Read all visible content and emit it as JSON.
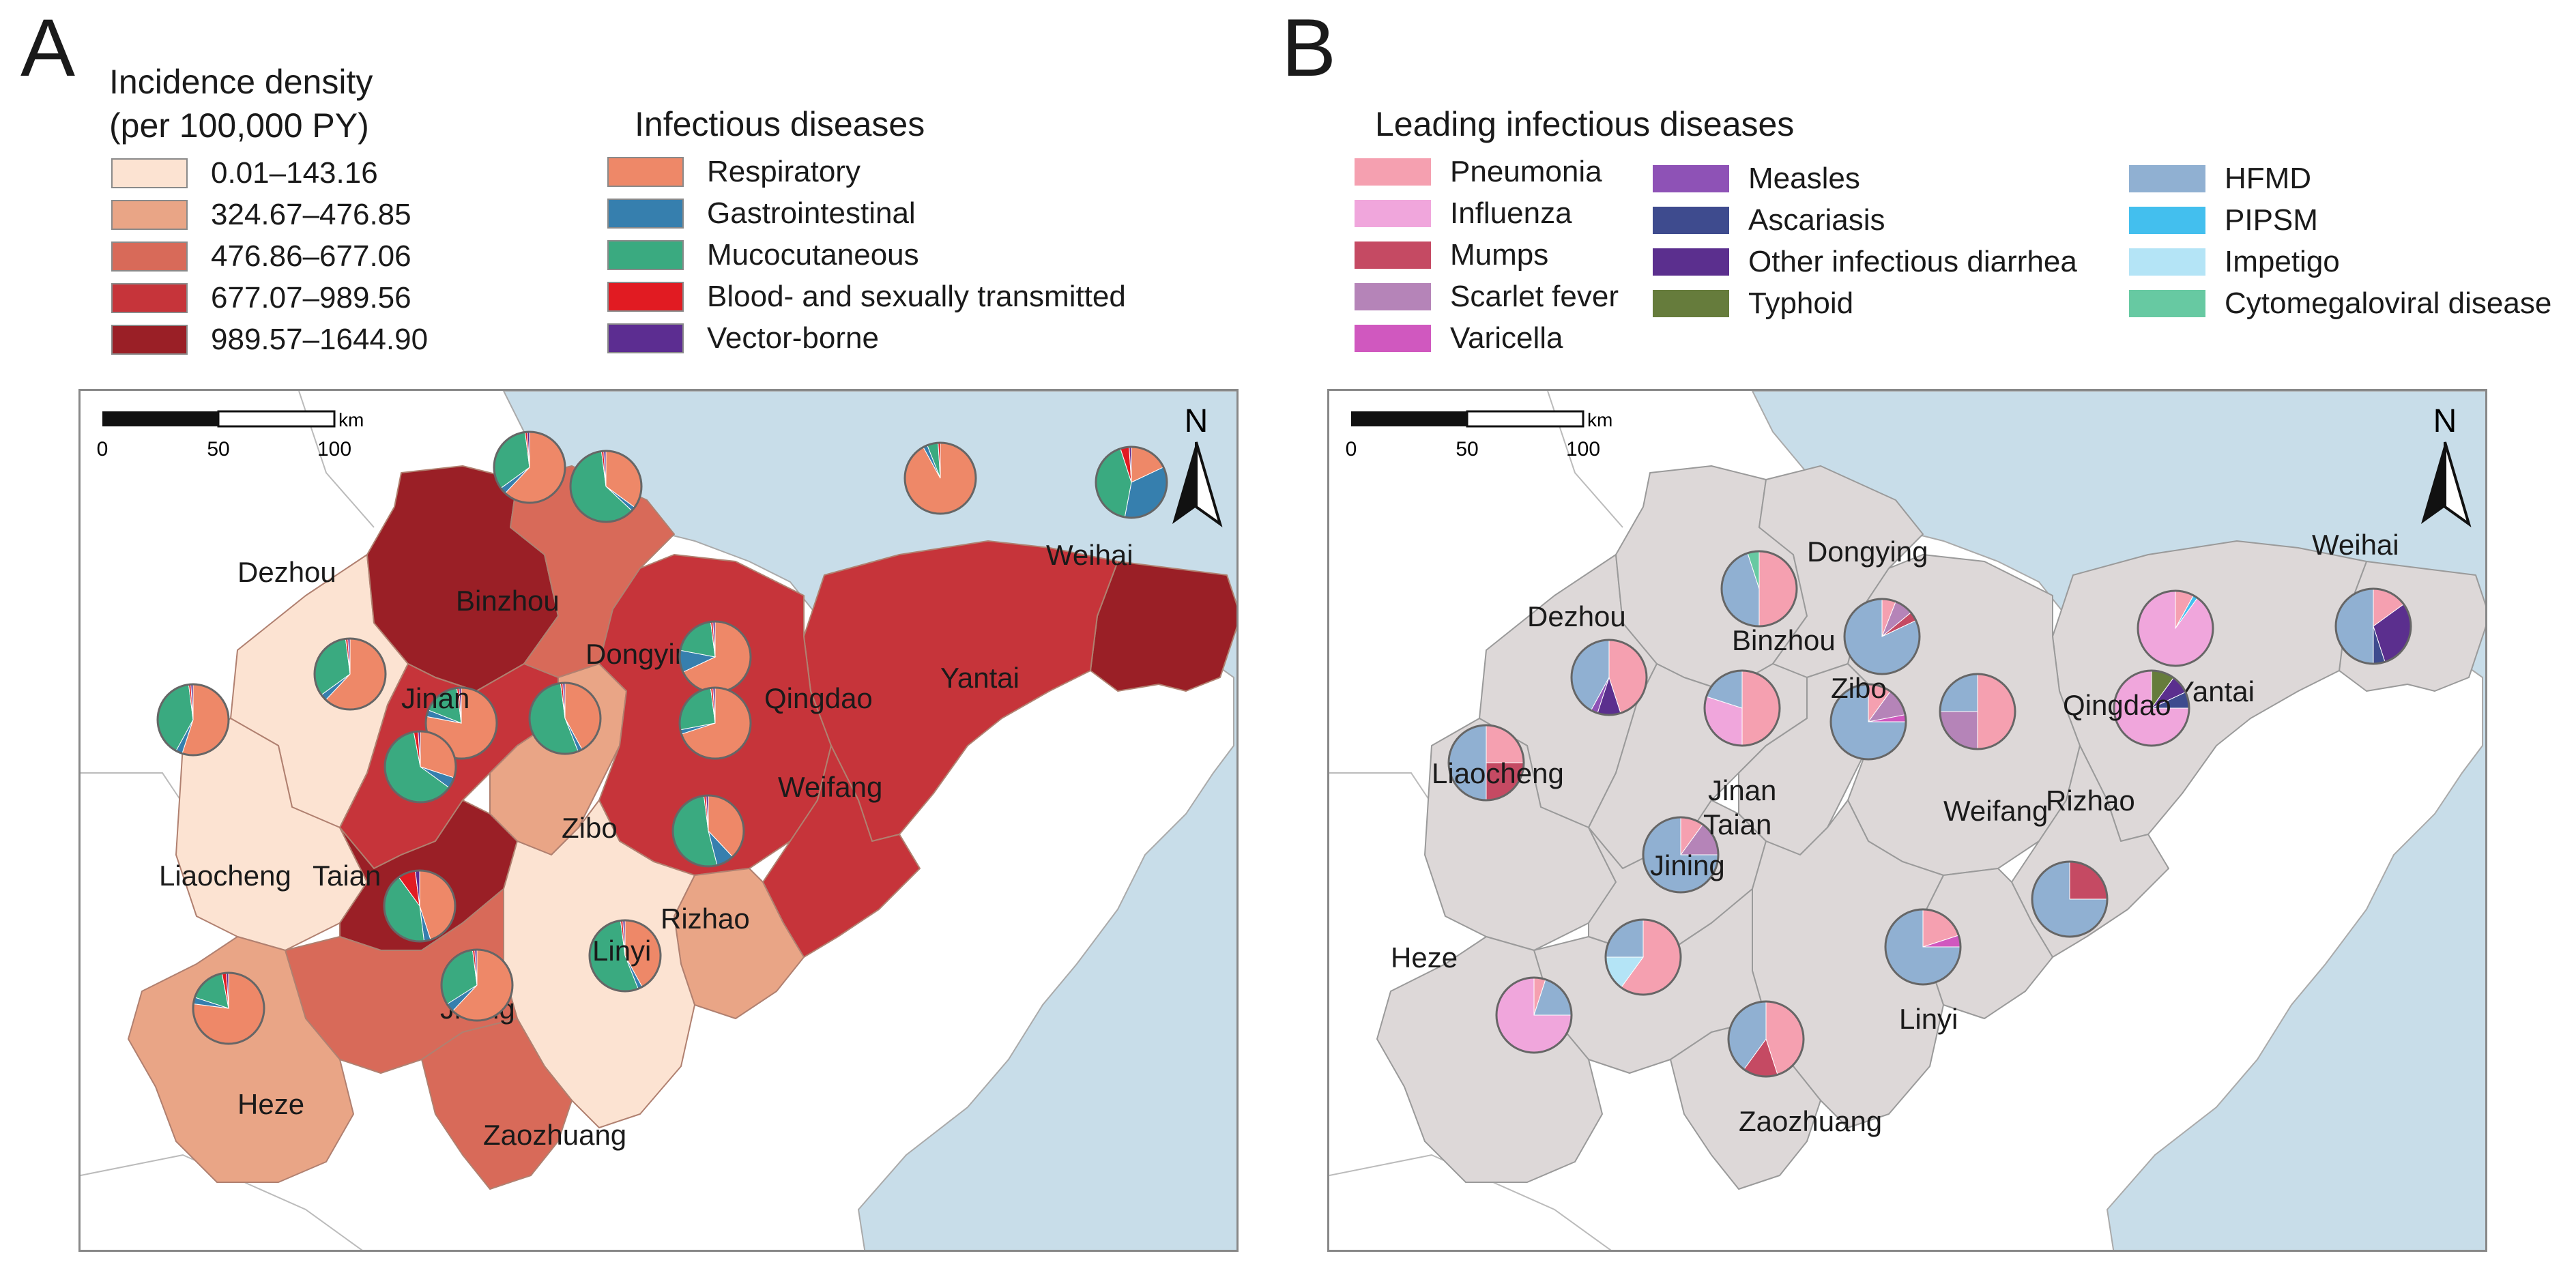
{
  "panel_a": {
    "letter": "A",
    "density_legend": {
      "title_line1": "Incidence density",
      "title_line2": "(per 100,000 PY)",
      "items": [
        {
          "label": "0.01–143.16",
          "color": "#fce3d2"
        },
        {
          "label": "324.67–476.85",
          "color": "#e9a586"
        },
        {
          "label": "476.86–677.06",
          "color": "#d86a59"
        },
        {
          "label": "677.07–989.56",
          "color": "#c6343a"
        },
        {
          "label": "989.57–1644.90",
          "color": "#9a1f26"
        }
      ]
    },
    "disease_legend": {
      "title": "Infectious diseases",
      "items": [
        {
          "label": "Respiratory",
          "color": "#ee8868"
        },
        {
          "label": "Gastrointestinal",
          "color": "#367fae"
        },
        {
          "label": "Mucocutaneous",
          "color": "#3aaa80"
        },
        {
          "label": "Blood- and sexually transmitted",
          "color": "#e11b22"
        },
        {
          "label": "Vector-borne",
          "color": "#5c2d91"
        }
      ]
    },
    "cities": [
      {
        "name": "Dezhou",
        "shares": [
          62,
          3,
          33,
          1,
          1
        ]
      },
      {
        "name": "Binzhou",
        "shares": [
          62,
          3,
          33,
          1,
          1
        ]
      },
      {
        "name": "Dongying",
        "shares": [
          35,
          2,
          61,
          1,
          1
        ]
      },
      {
        "name": "Weihai",
        "shares": [
          18,
          35,
          42,
          4,
          1
        ]
      },
      {
        "name": "Yantai",
        "shares": [
          92,
          2,
          5,
          1,
          0
        ]
      },
      {
        "name": "Jinan",
        "shares": [
          78,
          3,
          17,
          1,
          1
        ]
      },
      {
        "name": "Zibo",
        "shares": [
          42,
          2,
          54,
          1,
          1
        ]
      },
      {
        "name": "Qingdao",
        "shares": [
          68,
          10,
          20,
          1,
          1
        ]
      },
      {
        "name": "Weifang",
        "shares": [
          70,
          2,
          26,
          1,
          1
        ]
      },
      {
        "name": "Liaocheng",
        "shares": [
          55,
          3,
          40,
          1,
          1
        ]
      },
      {
        "name": "Taian",
        "shares": [
          30,
          5,
          62,
          2,
          1
        ]
      },
      {
        "name": "Rizhao",
        "shares": [
          38,
          8,
          52,
          1,
          1
        ]
      },
      {
        "name": "Linyi",
        "shares": [
          42,
          2,
          54,
          1,
          1
        ]
      },
      {
        "name": "Jining",
        "shares": [
          45,
          3,
          42,
          8,
          2
        ]
      },
      {
        "name": "Heze",
        "shares": [
          77,
          3,
          17,
          2,
          1
        ]
      },
      {
        "name": "Zaozhuang",
        "shares": [
          62,
          4,
          32,
          1,
          1
        ]
      }
    ]
  },
  "panel_b": {
    "letter": "B",
    "legend": {
      "title": "Leading infectious diseases",
      "items": [
        {
          "label": "Pneumonia",
          "color": "#f5a0b0"
        },
        {
          "label": "Influenza",
          "color": "#f0a6dc"
        },
        {
          "label": "Mumps",
          "color": "#c54a63"
        },
        {
          "label": "Scarlet fever",
          "color": "#b584b8"
        },
        {
          "label": "Varicella",
          "color": "#d058bf"
        },
        {
          "label": "Measles",
          "color": "#8e52b6"
        },
        {
          "label": "Ascariasis",
          "color": "#3e4b8e"
        },
        {
          "label": "Other infectious diarrhea",
          "color": "#5b2f8e"
        },
        {
          "label": "Typhoid",
          "color": "#667c3c"
        },
        {
          "label": "HFMD",
          "color": "#90b0d2"
        },
        {
          "label": "PIPSM",
          "color": "#43bfee"
        },
        {
          "label": "Impetigo",
          "color": "#b4e4f6"
        },
        {
          "label": "Cytomegaloviral disease",
          "color": "#67c9a2"
        }
      ]
    },
    "cities": [
      {
        "name": "Binzhou",
        "shares": {
          "Pneumonia": 50,
          "HFMD": 45,
          "Cytomegaloviral disease": 5
        }
      },
      {
        "name": "Dongying",
        "shares": {
          "Pneumonia": 6,
          "Scarlet fever": 8,
          "Mumps": 4,
          "HFMD": 82
        }
      },
      {
        "name": "Dezhou",
        "shares": {
          "Pneumonia": 45,
          "Other infectious diarrhea": 10,
          "Measles": 3,
          "HFMD": 42
        }
      },
      {
        "name": "Weihai",
        "shares": {
          "Pneumonia": 15,
          "Other infectious diarrhea": 30,
          "Ascariasis": 5,
          "HFMD": 50
        }
      },
      {
        "name": "Yantai",
        "shares": {
          "Pneumonia": 8,
          "PIPSM": 2,
          "Influenza": 90
        }
      },
      {
        "name": "Jinan",
        "shares": {
          "Pneumonia": 50,
          "Influenza": 30,
          "HFMD": 20
        }
      },
      {
        "name": "Zibo",
        "shares": {
          "Pneumonia": 10,
          "Scarlet fever": 12,
          "Varicella": 3,
          "HFMD": 75
        }
      },
      {
        "name": "Qingdao",
        "shares": {
          "Typhoid": 10,
          "Other infectious diarrhea": 8,
          "Ascariasis": 7,
          "Influenza": 75
        }
      },
      {
        "name": "Weifang",
        "shares": {
          "Pneumonia": 50,
          "Scarlet fever": 25,
          "HFMD": 25
        }
      },
      {
        "name": "Liaocheng",
        "shares": {
          "Pneumonia": 25,
          "Mumps": 25,
          "HFMD": 50
        }
      },
      {
        "name": "Taian",
        "shares": {
          "Pneumonia": 10,
          "Scarlet fever": 15,
          "HFMD": 75
        }
      },
      {
        "name": "Rizhao",
        "shares": {
          "Mumps": 25,
          "HFMD": 75
        }
      },
      {
        "name": "Linyi",
        "shares": {
          "Pneumonia": 20,
          "Varicella": 5,
          "HFMD": 75
        }
      },
      {
        "name": "Jining",
        "shares": {
          "Pneumonia": 60,
          "Impetigo": 15,
          "HFMD": 25
        }
      },
      {
        "name": "Heze",
        "shares": {
          "Pneumonia": 5,
          "HFMD": 20,
          "Influenza": 75
        }
      },
      {
        "name": "Zaozhuang",
        "shares": {
          "Pneumonia": 45,
          "Mumps": 15,
          "HFMD": 40
        }
      }
    ]
  },
  "scale_bar": {
    "unit": "km",
    "ticks": [
      "0",
      "50",
      "100"
    ]
  },
  "north_label": "N",
  "colors": {
    "sea": "#c8dde9",
    "land_b": "#ddd8d8",
    "border": "#9a9a9a"
  }
}
